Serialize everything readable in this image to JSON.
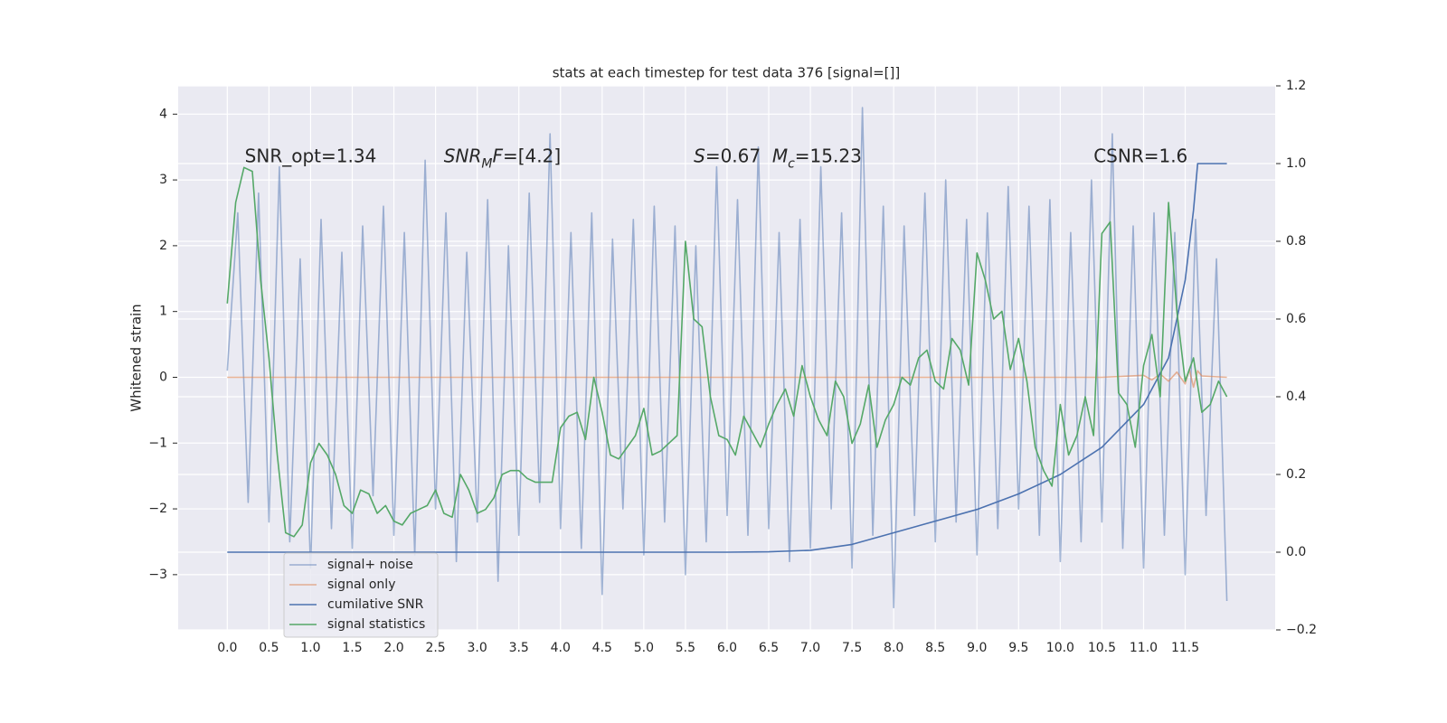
{
  "chart_data": {
    "type": "line",
    "title": "stats at each timestep for test data 376 [signal=[]]",
    "ylabel": "Whitened strain",
    "grid": true,
    "legend": "lower left",
    "background": "#eaeaf2",
    "xlim": [
      -0.59,
      12.58
    ],
    "ylim": [
      -3.84,
      4.43
    ],
    "y2lim": [
      -0.2,
      1.2
    ],
    "xticks": [
      {
        "value": 0,
        "label": "0.0"
      },
      0.5,
      {
        "value": 1,
        "label": "1.0"
      },
      1.5,
      {
        "value": 2,
        "label": "2.0"
      },
      2.5,
      {
        "value": 3,
        "label": "3.0"
      },
      3.5,
      {
        "value": 4,
        "label": "4.0"
      },
      4.5,
      {
        "value": 5,
        "label": "5.0"
      },
      5.5,
      {
        "value": 6,
        "label": "6.0"
      },
      6.5,
      {
        "value": 7,
        "label": "7.0"
      },
      7.5,
      {
        "value": 8,
        "label": "8.0"
      },
      8.5,
      {
        "value": 9,
        "label": "9.0"
      },
      9.5,
      {
        "value": 10,
        "label": "10.0"
      },
      10.5,
      {
        "value": 11,
        "label": "11.0"
      },
      11.5
    ],
    "yticks": [
      {
        "value": -3,
        "label": "−3"
      },
      {
        "value": -2,
        "label": "−2"
      },
      {
        "value": -1,
        "label": "−1"
      },
      0,
      1,
      2,
      3,
      4
    ],
    "y2ticks": [
      {
        "value": -0.2,
        "label": "−0.2"
      },
      {
        "value": 0,
        "label": "0.0"
      },
      0.2,
      0.4,
      0.6,
      0.8,
      {
        "value": 1,
        "label": "1.0"
      },
      1.2
    ],
    "annotations": [
      {
        "x": 0.21,
        "y": 3.35,
        "parts": [
          {
            "text": "SNR_opt=1.34"
          }
        ]
      },
      {
        "x": 2.6,
        "y": 3.35,
        "parts": [
          {
            "text": "SNR",
            "italic": true
          },
          {
            "text": "M",
            "italic": true,
            "sub": true
          },
          {
            "text": "F",
            "italic": true
          },
          {
            "text": "=[4.2]"
          }
        ]
      },
      {
        "x": 5.6,
        "y": 3.35,
        "parts": [
          {
            "text": "S",
            "italic": true
          },
          {
            "text": "=0.67  "
          },
          {
            "text": "M",
            "italic": true
          },
          {
            "text": "c",
            "italic": true,
            "sub": true
          },
          {
            "text": "=15.23"
          }
        ]
      },
      {
        "x": 10.4,
        "y": 3.35,
        "parts": [
          {
            "text": "CSNR=1.6"
          }
        ]
      }
    ],
    "series": [
      {
        "name": "signal+ noise",
        "color": "#4c72b0",
        "alpha": 0.5,
        "x": [
          0,
          0.125,
          0.25,
          0.375,
          0.5,
          0.625,
          0.75,
          0.875,
          1,
          1.125,
          1.25,
          1.375,
          1.5,
          1.625,
          1.75,
          1.875,
          2,
          2.125,
          2.25,
          2.375,
          2.5,
          2.625,
          2.75,
          2.875,
          3,
          3.125,
          3.25,
          3.375,
          3.5,
          3.625,
          3.75,
          3.875,
          4,
          4.125,
          4.25,
          4.375,
          4.5,
          4.625,
          4.75,
          4.875,
          5,
          5.125,
          5.25,
          5.375,
          5.5,
          5.625,
          5.75,
          5.875,
          6,
          6.125,
          6.25,
          6.375,
          6.5,
          6.625,
          6.75,
          6.875,
          7,
          7.125,
          7.25,
          7.375,
          7.5,
          7.625,
          7.75,
          7.875,
          8,
          8.125,
          8.25,
          8.375,
          8.5,
          8.625,
          8.75,
          8.875,
          9,
          9.125,
          9.25,
          9.375,
          9.5,
          9.625,
          9.75,
          9.875,
          10,
          10.125,
          10.25,
          10.375,
          10.5,
          10.625,
          10.75,
          10.875,
          11,
          11.125,
          11.25,
          11.375,
          11.5,
          11.625,
          11.75,
          11.875,
          12
        ],
        "values": [
          0.1,
          2.5,
          -1.9,
          2.8,
          -2.2,
          3.2,
          -2.5,
          1.8,
          -2.9,
          2.4,
          -2.3,
          1.9,
          -2.6,
          2.3,
          -1.8,
          2.6,
          -2.4,
          2.2,
          -2.7,
          3.3,
          -2.0,
          2.5,
          -2.8,
          1.9,
          -2.2,
          2.7,
          -3.1,
          2.0,
          -2.4,
          2.8,
          -1.9,
          3.7,
          -2.3,
          2.2,
          -2.6,
          2.5,
          -3.3,
          2.1,
          -2.0,
          2.4,
          -2.7,
          2.6,
          -2.2,
          2.3,
          -3.0,
          2.0,
          -2.5,
          3.2,
          -2.1,
          2.7,
          -2.4,
          3.5,
          -2.3,
          2.2,
          -2.8,
          2.4,
          -2.6,
          3.2,
          -2.0,
          2.5,
          -2.9,
          4.1,
          -2.4,
          2.6,
          -3.5,
          2.3,
          -2.1,
          2.8,
          -2.5,
          3.0,
          -2.2,
          2.4,
          -2.7,
          2.5,
          -2.3,
          2.9,
          -2.0,
          2.6,
          -2.4,
          2.7,
          -2.8,
          2.2,
          -2.5,
          3.0,
          -2.2,
          3.7,
          -2.6,
          2.3,
          -2.9,
          2.5,
          -2.4,
          2.2,
          -3.0,
          2.4,
          -2.1,
          1.8,
          -3.4
        ]
      },
      {
        "name": "signal only",
        "color": "#dd8452",
        "alpha": 0.6,
        "x": [
          0,
          10.5,
          11.0,
          11.1,
          11.2,
          11.3,
          11.4,
          11.5,
          11.55,
          11.6,
          11.65,
          11.7,
          12.0
        ],
        "values": [
          0,
          0,
          0.03,
          -0.04,
          0.05,
          -0.06,
          0.08,
          -0.1,
          0.12,
          -0.15,
          0.1,
          0.02,
          0
        ]
      },
      {
        "name": "cumilative SNR",
        "color": "#4c72b0",
        "alpha": 1,
        "axis": "y2",
        "x": [
          0,
          6.0,
          6.5,
          7.0,
          7.5,
          8.0,
          8.5,
          9.0,
          9.5,
          10.0,
          10.5,
          11.0,
          11.3,
          11.5,
          11.6,
          11.65,
          12.0
        ],
        "values": [
          0,
          0,
          0.001,
          0.005,
          0.02,
          0.05,
          0.08,
          0.11,
          0.15,
          0.2,
          0.27,
          0.38,
          0.5,
          0.7,
          0.88,
          1.0,
          1.0
        ]
      },
      {
        "name": "signal statistics",
        "color": "#55a868",
        "alpha": 1,
        "axis": "y2",
        "x": [
          0,
          0.1,
          0.2,
          0.3,
          0.4,
          0.5,
          0.6,
          0.7,
          0.8,
          0.9,
          1,
          1.1,
          1.2,
          1.3,
          1.4,
          1.5,
          1.6,
          1.7,
          1.8,
          1.9,
          2,
          2.1,
          2.2,
          2.3,
          2.4,
          2.5,
          2.6,
          2.7,
          2.8,
          2.9,
          3,
          3.1,
          3.2,
          3.3,
          3.4,
          3.5,
          3.6,
          3.7,
          3.8,
          3.9,
          4,
          4.1,
          4.2,
          4.3,
          4.4,
          4.5,
          4.6,
          4.7,
          4.8,
          4.9,
          5,
          5.1,
          5.2,
          5.3,
          5.4,
          5.5,
          5.6,
          5.7,
          5.8,
          5.9,
          6,
          6.1,
          6.2,
          6.3,
          6.4,
          6.5,
          6.6,
          6.7,
          6.8,
          6.9,
          7,
          7.1,
          7.2,
          7.3,
          7.4,
          7.5,
          7.6,
          7.7,
          7.8,
          7.9,
          8,
          8.1,
          8.2,
          8.3,
          8.4,
          8.5,
          8.6,
          8.7,
          8.8,
          8.9,
          9,
          9.1,
          9.2,
          9.3,
          9.4,
          9.5,
          9.6,
          9.7,
          9.8,
          9.9,
          10,
          10.1,
          10.2,
          10.3,
          10.4,
          10.5,
          10.6,
          10.7,
          10.8,
          10.9,
          11,
          11.1,
          11.2,
          11.3,
          11.4,
          11.5,
          11.6,
          11.7,
          11.8,
          11.9,
          12
        ],
        "values": [
          0.64,
          0.9,
          0.99,
          0.98,
          0.7,
          0.5,
          0.25,
          0.05,
          0.04,
          0.07,
          0.23,
          0.28,
          0.25,
          0.2,
          0.12,
          0.1,
          0.16,
          0.15,
          0.1,
          0.12,
          0.08,
          0.07,
          0.1,
          0.11,
          0.12,
          0.16,
          0.1,
          0.09,
          0.2,
          0.16,
          0.1,
          0.11,
          0.14,
          0.2,
          0.21,
          0.21,
          0.19,
          0.18,
          0.18,
          0.18,
          0.32,
          0.35,
          0.36,
          0.29,
          0.45,
          0.36,
          0.25,
          0.24,
          0.27,
          0.3,
          0.37,
          0.25,
          0.26,
          0.28,
          0.3,
          0.8,
          0.6,
          0.58,
          0.4,
          0.3,
          0.29,
          0.25,
          0.35,
          0.31,
          0.27,
          0.33,
          0.38,
          0.42,
          0.35,
          0.48,
          0.4,
          0.34,
          0.3,
          0.44,
          0.4,
          0.28,
          0.33,
          0.43,
          0.27,
          0.34,
          0.38,
          0.45,
          0.43,
          0.5,
          0.52,
          0.44,
          0.42,
          0.55,
          0.52,
          0.43,
          0.77,
          0.7,
          0.6,
          0.62,
          0.47,
          0.55,
          0.44,
          0.27,
          0.21,
          0.17,
          0.38,
          0.25,
          0.3,
          0.4,
          0.3,
          0.82,
          0.85,
          0.41,
          0.38,
          0.27,
          0.48,
          0.56,
          0.4,
          0.9,
          0.62,
          0.44,
          0.5,
          0.36,
          0.38,
          0.44,
          0.4
        ]
      }
    ]
  }
}
